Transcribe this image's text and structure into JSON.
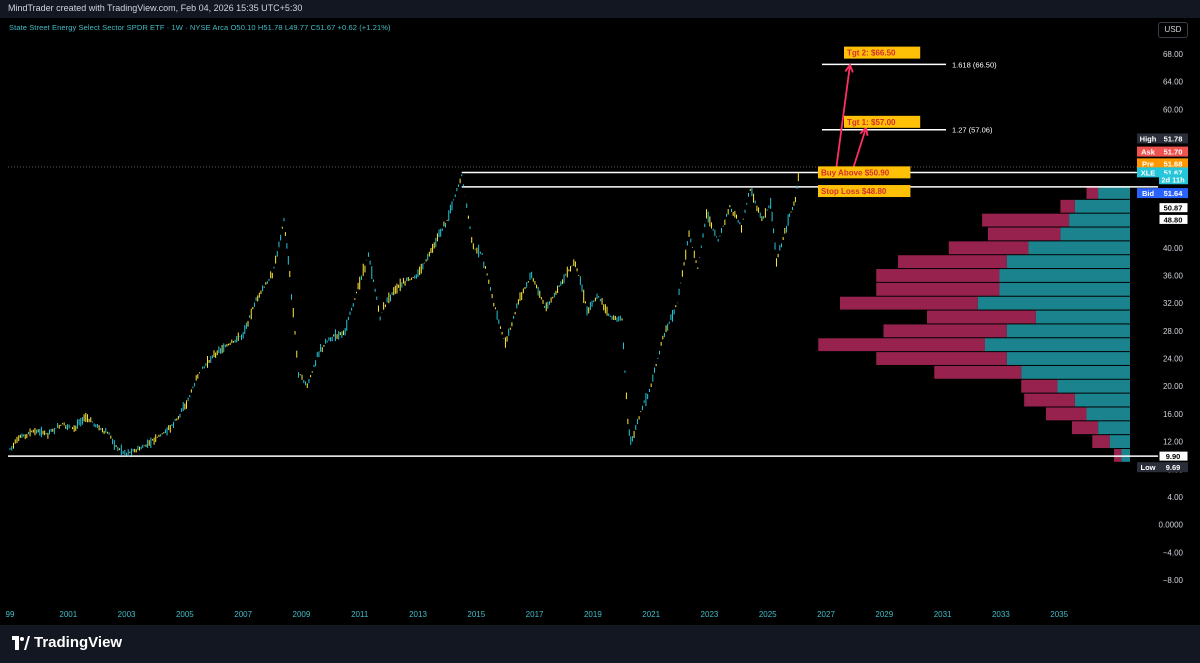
{
  "header": {
    "credit": "MindTrader created with TradingView.com, Feb 04, 2026 15:35 UTC+5:30",
    "legend": "State Street Energy Select Sector SPDR ETF · 1W · NYSE Arca",
    "ohlc": "O50.10 H51.78 L49.77 C51.67 +0.62 (+1.21%)",
    "currency": "USD"
  },
  "footer": {
    "brand": "TradingView"
  },
  "colors": {
    "background": "#000000",
    "candle_up": "#26c6da",
    "candle_down": "#ffeb3b",
    "vp_up": "#1f9aa6",
    "vp_down": "#b0285a",
    "annotation": "#ff2e63",
    "label_bg": "#ffc107"
  },
  "chart_data": {
    "type": "line",
    "symbol": "XLE",
    "interval": "1W",
    "ylim": [
      -10,
      70
    ],
    "xlim": [
      1999,
      2037
    ],
    "yticks": [
      68,
      64,
      60,
      56,
      52,
      48,
      44,
      40,
      36,
      32,
      28,
      24,
      20,
      16,
      12,
      8,
      4,
      0,
      -4,
      -8
    ],
    "ytick_labels": [
      "68.00",
      "64.00",
      "60.00",
      "56.00",
      "52.00",
      "48.00",
      "44.00",
      "40.00",
      "36.00",
      "32.00",
      "28.00",
      "24.00",
      "20.00",
      "16.00",
      "12.00",
      "8.00",
      "4.00",
      "0.0000",
      "−4.00",
      "−8.00"
    ],
    "xticks": [
      "99",
      "2001",
      "2003",
      "2005",
      "2007",
      "2009",
      "2011",
      "2013",
      "2015",
      "2017",
      "2019",
      "2021",
      "2023",
      "2025",
      "2027",
      "2029",
      "2031",
      "2033",
      "2035"
    ],
    "xtick_years": [
      1999,
      2001,
      2003,
      2005,
      2007,
      2009,
      2011,
      2013,
      2015,
      2017,
      2019,
      2021,
      2023,
      2025,
      2027,
      2029,
      2031,
      2033,
      2035
    ],
    "price_path": [
      [
        1999.0,
        11.0
      ],
      [
        1999.3,
        12.5
      ],
      [
        1999.8,
        13.5
      ],
      [
        2000.3,
        13.2
      ],
      [
        2000.8,
        14.5
      ],
      [
        2001.2,
        14.0
      ],
      [
        2001.6,
        15.5
      ],
      [
        2002.0,
        14.2
      ],
      [
        2002.4,
        13.0
      ],
      [
        2002.7,
        11.0
      ],
      [
        2003.0,
        10.3
      ],
      [
        2003.5,
        11.0
      ],
      [
        2004.0,
        12.5
      ],
      [
        2004.5,
        14.0
      ],
      [
        2005.0,
        17.0
      ],
      [
        2005.5,
        22.0
      ],
      [
        2006.0,
        24.5
      ],
      [
        2006.5,
        26.0
      ],
      [
        2007.0,
        27.5
      ],
      [
        2007.5,
        33.0
      ],
      [
        2008.0,
        36.0
      ],
      [
        2008.4,
        44.0
      ],
      [
        2008.6,
        36.0
      ],
      [
        2008.9,
        22.0
      ],
      [
        2009.2,
        20.0
      ],
      [
        2009.6,
        25.0
      ],
      [
        2010.0,
        27.0
      ],
      [
        2010.5,
        28.0
      ],
      [
        2011.0,
        35.0
      ],
      [
        2011.3,
        39.0
      ],
      [
        2011.7,
        30.0
      ],
      [
        2012.0,
        33.0
      ],
      [
        2012.5,
        35.0
      ],
      [
        2013.0,
        36.0
      ],
      [
        2013.5,
        40.0
      ],
      [
        2014.0,
        44.0
      ],
      [
        2014.5,
        50.5
      ],
      [
        2014.9,
        40.0
      ],
      [
        2015.2,
        39.0
      ],
      [
        2015.6,
        32.0
      ],
      [
        2016.0,
        26.0
      ],
      [
        2016.5,
        33.0
      ],
      [
        2016.9,
        36.0
      ],
      [
        2017.4,
        31.0
      ],
      [
        2017.9,
        35.0
      ],
      [
        2018.4,
        38.0
      ],
      [
        2018.8,
        31.0
      ],
      [
        2019.2,
        33.0
      ],
      [
        2019.6,
        30.0
      ],
      [
        2020.0,
        29.5
      ],
      [
        2020.2,
        15.0
      ],
      [
        2020.3,
        12.0
      ],
      [
        2020.7,
        17.0
      ],
      [
        2021.0,
        20.0
      ],
      [
        2021.4,
        27.0
      ],
      [
        2021.9,
        32.0
      ],
      [
        2022.3,
        42.0
      ],
      [
        2022.6,
        37.0
      ],
      [
        2022.9,
        45.0
      ],
      [
        2023.3,
        41.0
      ],
      [
        2023.7,
        46.0
      ],
      [
        2024.1,
        43.0
      ],
      [
        2024.4,
        48.5
      ],
      [
        2024.8,
        44.0
      ],
      [
        2025.1,
        46.5
      ],
      [
        2025.3,
        38.0
      ],
      [
        2025.7,
        44.0
      ],
      [
        2025.95,
        47.0
      ],
      [
        2026.1,
        51.67
      ]
    ],
    "volume_profile": {
      "rows": [
        {
          "price": 48,
          "up": 22,
          "down": 8
        },
        {
          "price": 46,
          "up": 38,
          "down": 10
        },
        {
          "price": 44,
          "up": 42,
          "down": 60
        },
        {
          "price": 42,
          "up": 48,
          "down": 50
        },
        {
          "price": 40,
          "up": 70,
          "down": 55
        },
        {
          "price": 38,
          "up": 85,
          "down": 75
        },
        {
          "price": 36,
          "up": 90,
          "down": 85
        },
        {
          "price": 34,
          "up": 90,
          "down": 85
        },
        {
          "price": 32,
          "up": 105,
          "down": 95
        },
        {
          "price": 30,
          "up": 65,
          "down": 75
        },
        {
          "price": 28,
          "up": 85,
          "down": 85
        },
        {
          "price": 26,
          "up": 100,
          "down": 115
        },
        {
          "price": 24,
          "up": 85,
          "down": 90
        },
        {
          "price": 22,
          "up": 75,
          "down": 60
        },
        {
          "price": 20,
          "up": 50,
          "down": 25
        },
        {
          "price": 18,
          "up": 38,
          "down": 35
        },
        {
          "price": 16,
          "up": 30,
          "down": 28
        },
        {
          "price": 14,
          "up": 22,
          "down": 18
        },
        {
          "price": 12,
          "up": 14,
          "down": 12
        },
        {
          "price": 10,
          "up": 6,
          "down": 5
        }
      ]
    },
    "levels": [
      {
        "name": "resistance",
        "price": 50.87
      },
      {
        "name": "support",
        "price": 48.8
      },
      {
        "name": "low-line",
        "price": 9.9
      }
    ],
    "fib_levels": [
      {
        "label": "1.618 (66.50)",
        "price": 66.5
      },
      {
        "label": "1.27 (57.06)",
        "price": 57.06
      }
    ],
    "annotations": [
      {
        "label": "Buy Above $50.90",
        "price": 50.9
      },
      {
        "label": "Stop Loss $48.80",
        "price": 48.2
      },
      {
        "label": "Tgt 1: $57.00",
        "price": 58.2
      },
      {
        "label": "Tgt 2: $66.50",
        "price": 68.2
      }
    ],
    "price_badges": [
      {
        "label": "High",
        "value": "51.78",
        "price": 55.8,
        "color": "#2a2e39"
      },
      {
        "label": "Ask",
        "value": "51.70",
        "price": 53.9,
        "color": "#ef5350"
      },
      {
        "label": "Pre",
        "value": "51.68",
        "price": 52.2,
        "color": "#ff9800"
      },
      {
        "label": "XLE",
        "value": "51.67",
        "price": 50.9,
        "color": "#26c6da"
      },
      {
        "label": "",
        "value": "2d 11h",
        "price": 49.9,
        "color": "#26c6da"
      },
      {
        "label": "Bid",
        "value": "51.64",
        "price": 47.9,
        "color": "#2962ff"
      },
      {
        "label": "",
        "value": "50.87",
        "price": 45.8,
        "color": "#ffffff"
      },
      {
        "label": "",
        "value": "48.80",
        "price": 44.1,
        "color": "#ffffff"
      },
      {
        "label": "",
        "value": "9.90",
        "price": 9.9,
        "color": "#ffffff"
      },
      {
        "label": "Low",
        "value": "9.69",
        "price": 8.3,
        "color": "#2a2e39"
      }
    ]
  }
}
